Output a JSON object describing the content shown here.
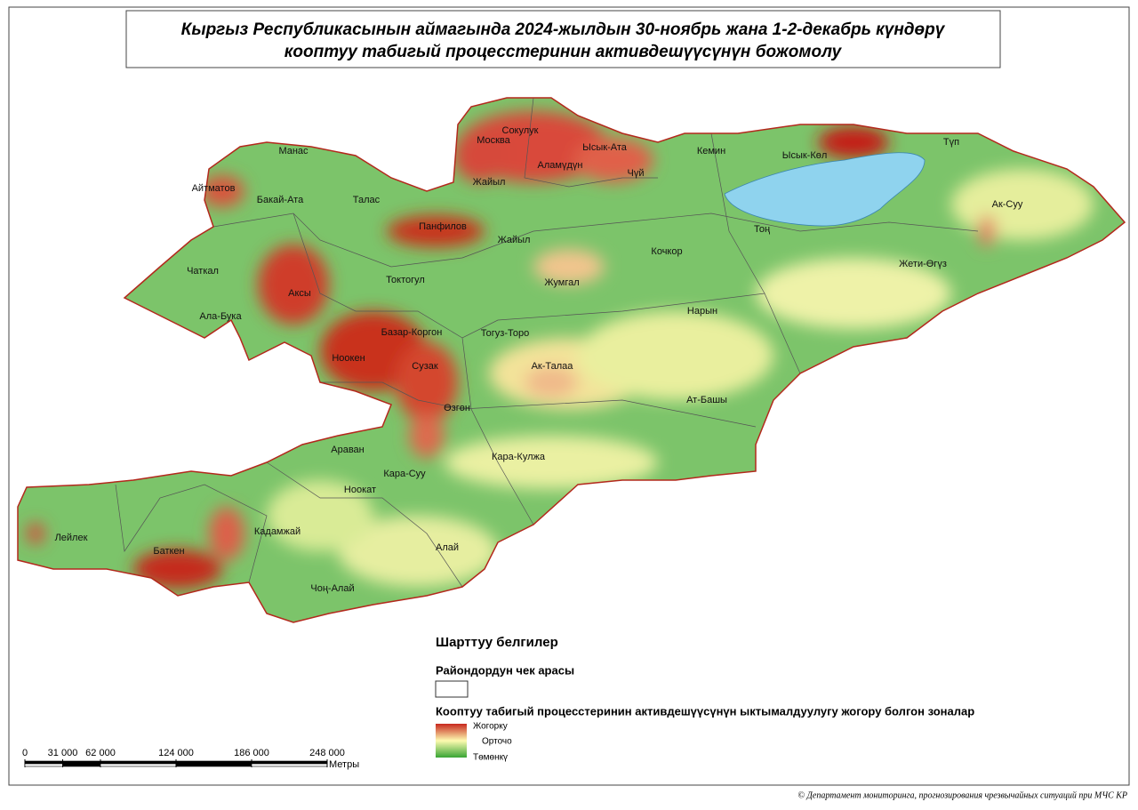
{
  "title": {
    "line1": "Кыргыз Республикасынын аймагында 2024-жылдын 30-ноябрь жана 1-2-декабрь күндөрү",
    "line2": "кооптуу табигый процесстеринин активдешүүсүнүн божомолу"
  },
  "districts": [
    "Манас",
    "Айтматов",
    "Бакай-Ата",
    "Талас",
    "Сокулук",
    "Москва",
    "Ысык-Ата",
    "Аламүдүн",
    "Чүй",
    "Жайыл",
    "Кемин",
    "Ысык-Көл",
    "Түп",
    "Ак-Суу",
    "Панфилов",
    "Жайыл",
    "Тоң",
    "Кочкор",
    "Чаткал",
    "Аксы",
    "Токтогул",
    "Жумгал",
    "Жети-Өгүз",
    "Ала-Бука",
    "Нарын",
    "Базар-Коргон",
    "Тогуз-Торо",
    "Ноокен",
    "Сузак",
    "Ак-Талаа",
    "Ат-Башы",
    "Өзгөн",
    "Араван",
    "Кара-Кулжа",
    "Кара-Суу",
    "Ноокат",
    "Кадамжай",
    "Лейлек",
    "Баткен",
    "Алай",
    "Чоң-Алай"
  ],
  "legend": {
    "heading": "Шарттуу белгилер",
    "boundary_label": "Райондордун чек арасы",
    "zones_label": "Кооптуу табигый процесстеринин активдешүүсүнүн ыктымалдуулугу жогору болгон зоналар",
    "levels": [
      "Жогорку",
      "Орточо",
      "Төмөнкү"
    ]
  },
  "scale_bar": {
    "ticks": [
      0,
      {
        "value": 31000,
        "label": "31 000"
      },
      {
        "value": 62000,
        "label": "62 000"
      },
      {
        "value": 124000,
        "label": "124 000"
      },
      {
        "value": 186000,
        "label": "186 000"
      },
      {
        "value": 248000,
        "label": "248 000"
      }
    ],
    "unit": "Метры"
  },
  "credit": "© Департамент мониторинга, прогнозирования чрезвычайных ситуаций при МЧС КР"
}
